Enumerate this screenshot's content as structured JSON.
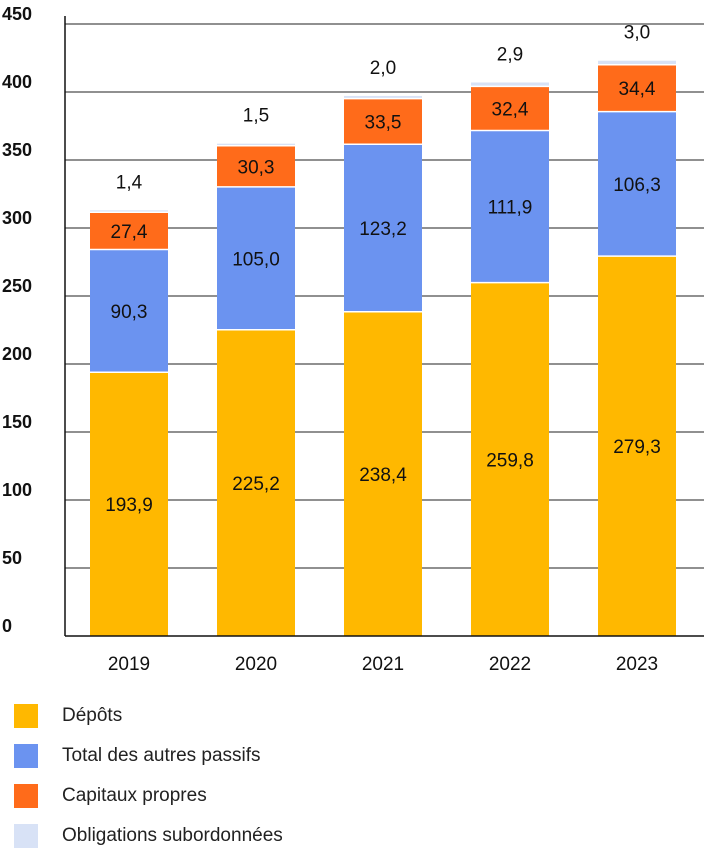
{
  "chart_data": {
    "type": "bar",
    "stacked": true,
    "categories": [
      "2019",
      "2020",
      "2021",
      "2022",
      "2023"
    ],
    "series": [
      {
        "name": "Dépôts",
        "color": "#FFB800",
        "values": [
          193.9,
          225.2,
          238.4,
          259.8,
          279.3
        ],
        "labels": [
          "193,9",
          "225,2",
          "238,4",
          "259,8",
          "279,3"
        ]
      },
      {
        "name": "Total des autres passifs",
        "color": "#6B93F0",
        "values": [
          90.3,
          105.0,
          123.2,
          111.9,
          106.3
        ],
        "labels": [
          "90,3",
          "105,0",
          "123,2",
          "111,9",
          "106,3"
        ]
      },
      {
        "name": "Capitaux propres",
        "color": "#FF6B1A",
        "values": [
          27.4,
          30.3,
          33.5,
          32.4,
          34.4
        ],
        "labels": [
          "27,4",
          "30,3",
          "33,5",
          "32,4",
          "34,4"
        ]
      },
      {
        "name": "Obligations subordonnées",
        "color": "#D8E2F6",
        "values": [
          1.4,
          1.5,
          2.0,
          2.9,
          3.0
        ],
        "labels": [
          "1,4",
          "1,5",
          "2,0",
          "2,9",
          "3,0"
        ]
      }
    ],
    "ylim": [
      0,
      450
    ],
    "yticks": [
      0,
      50,
      100,
      150,
      200,
      250,
      300,
      350,
      400,
      450
    ],
    "grid": true,
    "legend_position": "bottom-left",
    "title": "",
    "xlabel": "",
    "ylabel": ""
  }
}
